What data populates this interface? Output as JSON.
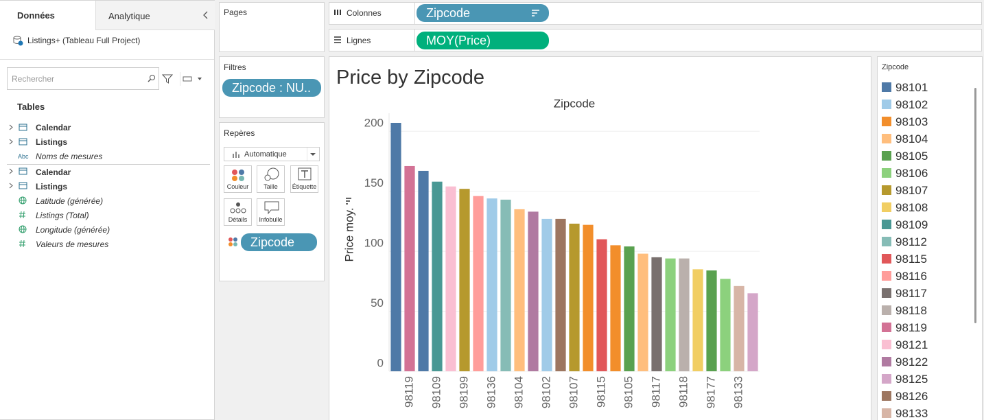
{
  "sidebar": {
    "tabs": [
      "Données",
      "Analytique"
    ],
    "datasource": "Listings+ (Tableau Full Project)",
    "search_placeholder": "Rechercher",
    "tables_heading": "Tables",
    "badge": "Abc",
    "dimensions": [
      "Calendar",
      "Listings",
      "Noms de mesures"
    ],
    "measures": [
      "Calendar",
      "Listings",
      "Latitude (générée)",
      "Listings (Total)",
      "Longitude (générée)",
      "Valeurs de mesures"
    ]
  },
  "cards": {
    "pages": "Pages",
    "filters": "Filtres",
    "filter_pill": "Zipcode : NU..",
    "marks": "Repères",
    "mark_type": "Automatique",
    "mark_buttons": [
      "Couleur",
      "Taille",
      "Étiquette",
      "Détails",
      "Infobulle"
    ],
    "color_pill": "Zipcode"
  },
  "shelves": {
    "columns_label": "Colonnes",
    "columns_pill": "Zipcode",
    "rows_label": "Lignes",
    "rows_pill": "MOY(Price)"
  },
  "sheet_title": "Price by Zipcode",
  "chart_data": {
    "type": "bar",
    "x_axis_title": "Zipcode",
    "y_axis_title": "Price moy.",
    "categories": [
      null,
      "98119",
      null,
      "98109",
      null,
      "98199",
      null,
      "98136",
      null,
      "98104",
      null,
      "98102",
      null,
      "98107",
      null,
      "98115",
      null,
      "98105",
      null,
      "98117",
      null,
      "98118",
      null,
      "98177",
      null,
      "98133",
      null
    ],
    "values": [
      207,
      171,
      167,
      158,
      154,
      152,
      146,
      144,
      143,
      135,
      133,
      127,
      127,
      123,
      122,
      110,
      105,
      104,
      98,
      95,
      94,
      94,
      85,
      84,
      77,
      71,
      65
    ],
    "colors": [
      "#4e79a7",
      "#d37295",
      "#4e79a7",
      "#499894",
      "#fabfd2",
      "#b6992d",
      "#ff9d9a",
      "#a0cbe8",
      "#86bcb6",
      "#ffbe7d",
      "#b07aa1",
      "#a0cbe8",
      "#9d7660",
      "#b6992d",
      "#f28e2b",
      "#e15759",
      "#f28e2b",
      "#59a14f",
      "#ffbe7d",
      "#79706e",
      "#8cd17d",
      "#bab0ac",
      "#f1ce63",
      "#59a14f",
      "#8cd17d",
      "#d7b5a6",
      "#d4a6c8"
    ],
    "ylim": [
      0,
      215
    ],
    "yticks": [
      0,
      50,
      100,
      150,
      200
    ],
    "grid": true
  },
  "legend": {
    "title": "Zipcode",
    "items": [
      {
        "name": "98101",
        "color": "#4e79a7"
      },
      {
        "name": "98102",
        "color": "#a0cbe8"
      },
      {
        "name": "98103",
        "color": "#f28e2b"
      },
      {
        "name": "98104",
        "color": "#ffbe7d"
      },
      {
        "name": "98105",
        "color": "#59a14f"
      },
      {
        "name": "98106",
        "color": "#8cd17d"
      },
      {
        "name": "98107",
        "color": "#b6992d"
      },
      {
        "name": "98108",
        "color": "#f1ce63"
      },
      {
        "name": "98109",
        "color": "#499894"
      },
      {
        "name": "98112",
        "color": "#86bcb6"
      },
      {
        "name": "98115",
        "color": "#e15759"
      },
      {
        "name": "98116",
        "color": "#ff9d9a"
      },
      {
        "name": "98117",
        "color": "#79706e"
      },
      {
        "name": "98118",
        "color": "#bab0ac"
      },
      {
        "name": "98119",
        "color": "#d37295"
      },
      {
        "name": "98121",
        "color": "#fabfd2"
      },
      {
        "name": "98122",
        "color": "#b07aa1"
      },
      {
        "name": "98125",
        "color": "#d4a6c8"
      },
      {
        "name": "98126",
        "color": "#9d7660"
      },
      {
        "name": "98133",
        "color": "#d7b5a6"
      }
    ]
  }
}
